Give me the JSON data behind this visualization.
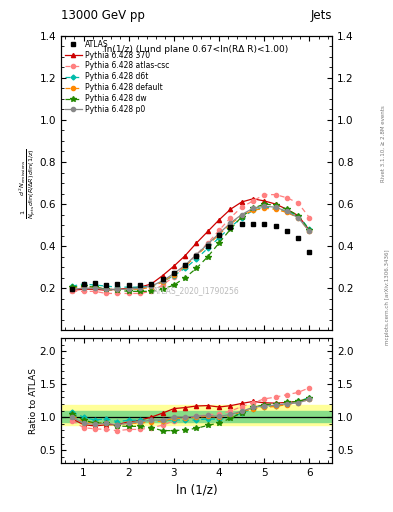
{
  "title_top": "13000 GeV pp",
  "title_right": "Jets",
  "annotation": "ln(1/z) (Lund plane 0.67<ln(RΔ R)<1.00)",
  "watermark": "ATLAS_2020_I1790256",
  "right_label": "Rivet 3.1.10, ≥ 2.8M events",
  "right_label2": "mcplots.cern.ch [arXiv:1306.3436]",
  "ylabel_main": "$\\frac{1}{N_{\\mathrm{jets}}}\\frac{d^2 N_{\\mathrm{emissions}}}{d\\ln(R/\\Delta R)\\,d\\ln(1/z)}$",
  "ylabel_ratio": "Ratio to ATLAS",
  "xlabel": "ln (1/z)",
  "xlim": [
    0.5,
    6.5
  ],
  "ylim_main": [
    0.0,
    1.4
  ],
  "ylim_ratio": [
    0.3,
    2.2
  ],
  "yticks_main": [
    0.2,
    0.4,
    0.6,
    0.8,
    1.0,
    1.2,
    1.4
  ],
  "yticks_ratio": [
    0.5,
    1.0,
    1.5,
    2.0
  ],
  "xticks": [
    1,
    2,
    3,
    4,
    5,
    6
  ],
  "x_atlas": [
    0.75,
    1.0,
    1.25,
    1.5,
    1.75,
    2.0,
    2.25,
    2.5,
    2.75,
    3.0,
    3.25,
    3.5,
    3.75,
    4.0,
    4.25,
    4.5,
    4.75,
    5.0,
    5.25,
    5.5,
    5.75,
    6.0
  ],
  "y_atlas": [
    0.195,
    0.22,
    0.225,
    0.215,
    0.22,
    0.215,
    0.215,
    0.22,
    0.245,
    0.27,
    0.31,
    0.355,
    0.4,
    0.455,
    0.49,
    0.505,
    0.505,
    0.505,
    0.495,
    0.47,
    0.44,
    0.37
  ],
  "x_py370": [
    0.75,
    1.0,
    1.25,
    1.5,
    1.75,
    2.0,
    2.25,
    2.5,
    2.75,
    3.0,
    3.25,
    3.5,
    3.75,
    4.0,
    4.25,
    4.5,
    4.75,
    5.0,
    5.25,
    5.5,
    5.75,
    6.0
  ],
  "y_py370": [
    0.19,
    0.195,
    0.195,
    0.19,
    0.195,
    0.2,
    0.205,
    0.22,
    0.26,
    0.305,
    0.355,
    0.415,
    0.47,
    0.525,
    0.575,
    0.61,
    0.625,
    0.615,
    0.6,
    0.575,
    0.545,
    0.475
  ],
  "x_pyatlas": [
    0.75,
    1.0,
    1.25,
    1.5,
    1.75,
    2.0,
    2.25,
    2.5,
    2.75,
    3.0,
    3.25,
    3.5,
    3.75,
    4.0,
    4.25,
    4.5,
    4.75,
    5.0,
    5.25,
    5.5,
    5.75,
    6.0
  ],
  "y_pyatlas": [
    0.185,
    0.185,
    0.185,
    0.175,
    0.175,
    0.175,
    0.175,
    0.185,
    0.215,
    0.255,
    0.305,
    0.36,
    0.415,
    0.475,
    0.535,
    0.585,
    0.615,
    0.645,
    0.645,
    0.63,
    0.605,
    0.535
  ],
  "x_pyd6t": [
    0.75,
    1.0,
    1.25,
    1.5,
    1.75,
    2.0,
    2.25,
    2.5,
    2.75,
    3.0,
    3.25,
    3.5,
    3.75,
    4.0,
    4.25,
    4.5,
    4.75,
    5.0,
    5.25,
    5.5,
    5.75,
    6.0
  ],
  "y_pyd6t": [
    0.21,
    0.22,
    0.215,
    0.21,
    0.205,
    0.205,
    0.205,
    0.21,
    0.23,
    0.26,
    0.295,
    0.34,
    0.39,
    0.44,
    0.49,
    0.535,
    0.57,
    0.585,
    0.58,
    0.565,
    0.545,
    0.48
  ],
  "x_pydef": [
    0.75,
    1.0,
    1.25,
    1.5,
    1.75,
    2.0,
    2.25,
    2.5,
    2.75,
    3.0,
    3.25,
    3.5,
    3.75,
    4.0,
    4.25,
    4.5,
    4.75,
    5.0,
    5.25,
    5.5,
    5.75,
    6.0
  ],
  "y_pydef": [
    0.2,
    0.205,
    0.205,
    0.195,
    0.195,
    0.195,
    0.195,
    0.205,
    0.23,
    0.265,
    0.305,
    0.355,
    0.405,
    0.455,
    0.505,
    0.545,
    0.57,
    0.58,
    0.575,
    0.56,
    0.535,
    0.47
  ],
  "x_pydw": [
    0.75,
    1.0,
    1.25,
    1.5,
    1.75,
    2.0,
    2.25,
    2.5,
    2.75,
    3.0,
    3.25,
    3.5,
    3.75,
    4.0,
    4.25,
    4.5,
    4.75,
    5.0,
    5.25,
    5.5,
    5.75,
    6.0
  ],
  "y_pydw": [
    0.205,
    0.21,
    0.205,
    0.195,
    0.19,
    0.185,
    0.185,
    0.185,
    0.195,
    0.215,
    0.25,
    0.295,
    0.35,
    0.415,
    0.48,
    0.54,
    0.58,
    0.6,
    0.595,
    0.575,
    0.545,
    0.475
  ],
  "x_pyp0": [
    0.75,
    1.0,
    1.25,
    1.5,
    1.75,
    2.0,
    2.25,
    2.5,
    2.75,
    3.0,
    3.25,
    3.5,
    3.75,
    4.0,
    4.25,
    4.5,
    4.75,
    5.0,
    5.25,
    5.5,
    5.75,
    6.0
  ],
  "y_pyp0": [
    0.195,
    0.2,
    0.2,
    0.195,
    0.195,
    0.195,
    0.2,
    0.21,
    0.235,
    0.27,
    0.31,
    0.36,
    0.41,
    0.46,
    0.51,
    0.55,
    0.58,
    0.59,
    0.585,
    0.565,
    0.535,
    0.47
  ],
  "band_yellow_lo": 0.88,
  "band_yellow_hi": 1.18,
  "band_green_lo": 0.93,
  "band_green_hi": 1.1,
  "color_atlas": "#000000",
  "color_py370": "#cc0000",
  "color_pyatlas": "#ff8080",
  "color_pyd6t": "#00bbaa",
  "color_pydef": "#ff8800",
  "color_pydw": "#228800",
  "color_pyp0": "#888888"
}
